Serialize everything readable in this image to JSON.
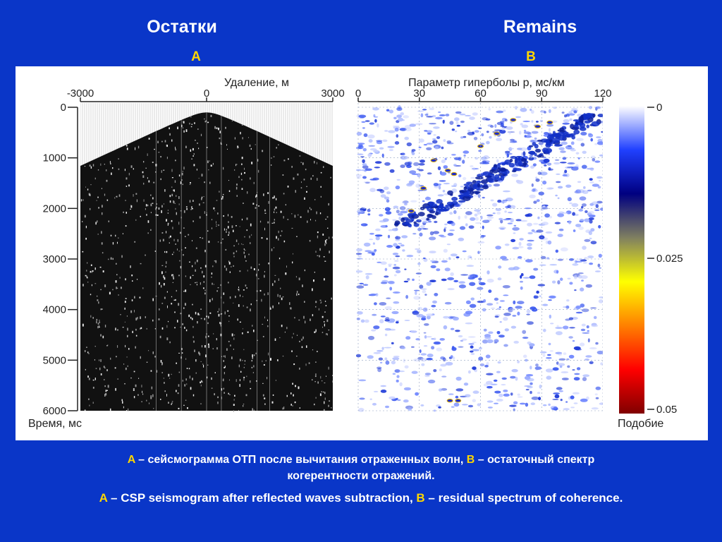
{
  "header": {
    "title_ru": "Остатки",
    "title_en": "Remains",
    "label_a": "A",
    "label_b": "B"
  },
  "panel_a": {
    "axis_title": "Удаление, м",
    "x_ticks": [
      "-3000",
      "0",
      "3000"
    ],
    "y_title": "Время, мс",
    "y_ticks": [
      "0",
      "1000",
      "2000",
      "3000",
      "4000",
      "5000",
      "6000"
    ],
    "x_range": [
      -3000,
      3000
    ],
    "y_range": [
      0,
      6000
    ]
  },
  "panel_b": {
    "axis_title": "Параметр гиперболы p, мс/км",
    "x_ticks": [
      "0",
      "30",
      "60",
      "90",
      "120"
    ],
    "x_range": [
      0,
      120
    ],
    "y_range": [
      0,
      6000
    ]
  },
  "colorbar": {
    "ticks": [
      "0",
      "0.025",
      "0.05"
    ],
    "title": "Подобие",
    "colors": [
      "#ffffff",
      "#2040ff",
      "#000080",
      "#808060",
      "#ffff00",
      "#ff8000",
      "#ff0000",
      "#800000"
    ]
  },
  "caption": {
    "line1": {
      "k1": "A",
      "t1": " – сейсмограмма ОТП после вычитания отраженных волн, ",
      "k2": "B",
      "t2": " – остаточный спектр"
    },
    "line2": "когерентности отражений.",
    "line3": {
      "k1": "A",
      "t1": " – CSP seismogram after reflected waves subtraction, ",
      "k2": "B",
      "t2": " – residual spectrum of coherence."
    }
  }
}
